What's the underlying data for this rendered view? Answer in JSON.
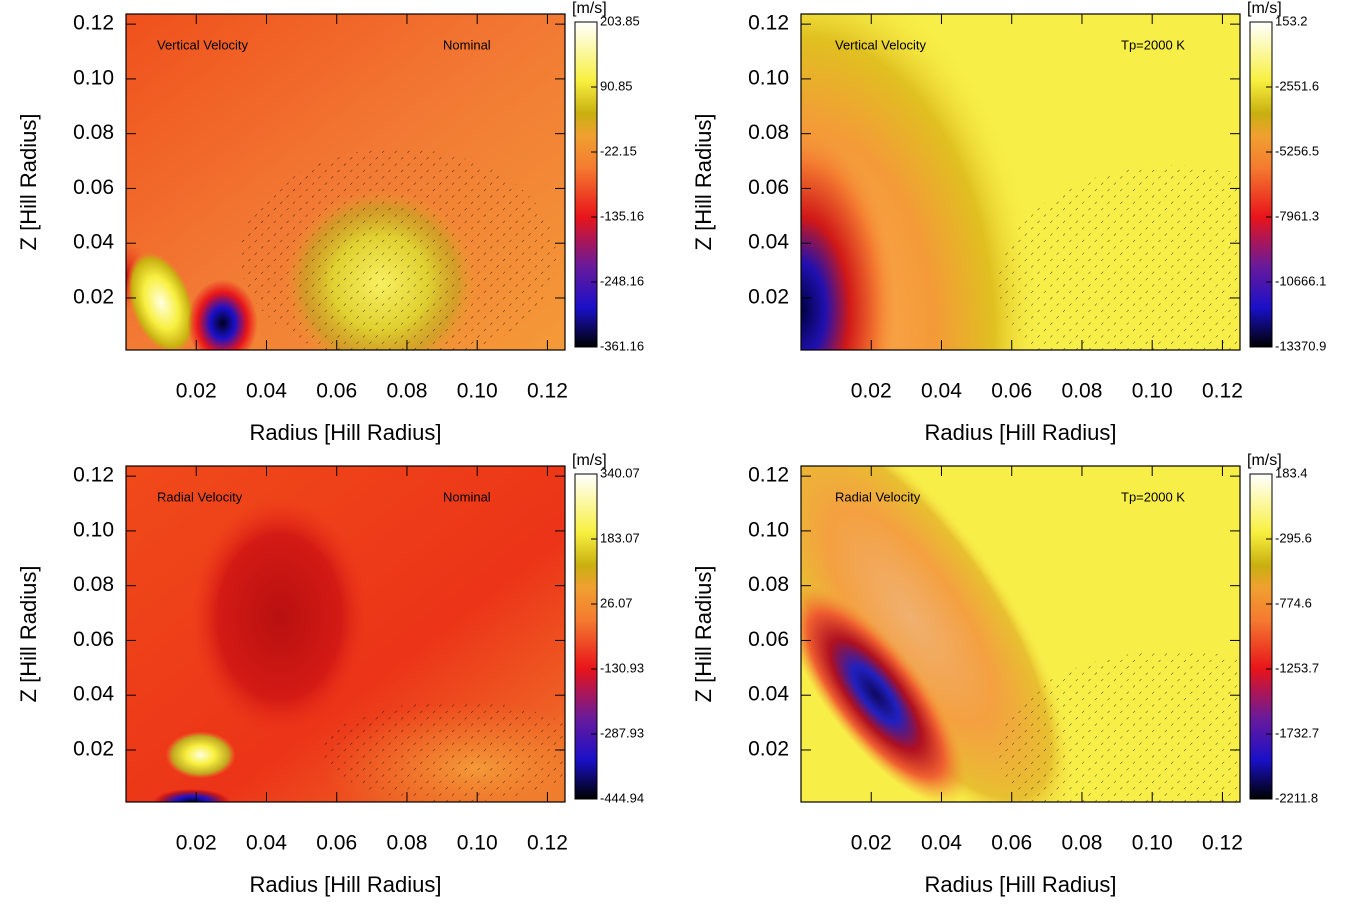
{
  "chart_data": [
    {
      "type": "heatmap",
      "title": "Vertical Velocity",
      "annotation": "Nominal",
      "xlabel": "Radius [Hill Radius]",
      "ylabel": "Z [Hill Radius]",
      "xlim": [
        0,
        0.125
      ],
      "ylim": [
        0.001,
        0.1237
      ],
      "xticks": [
        0.02,
        0.04,
        0.06,
        0.08,
        {
          "value": 0.1,
          "label": "0.10"
        },
        0.12
      ],
      "yticks": [
        0.02,
        0.04,
        0.06,
        0.08,
        {
          "value": 0.1,
          "label": "0.10"
        },
        0.12
      ],
      "colorbar_label": "[m/s]",
      "zlim": [
        -361.16,
        203.85
      ],
      "zticks": [
        203.85,
        90.85,
        -22.15,
        -135.16,
        -248.16,
        -361.16
      ]
    },
    {
      "type": "heatmap",
      "title": "Vertical Velocity",
      "annotation": "Tp=2000 K",
      "xlabel": "Radius [Hill Radius]",
      "ylabel": "Z [Hill Radius]",
      "xlim": [
        0,
        0.125
      ],
      "ylim": [
        0.001,
        0.1237
      ],
      "xticks": [
        0.02,
        0.04,
        0.06,
        0.08,
        {
          "value": 0.1,
          "label": "0.10"
        },
        0.12
      ],
      "yticks": [
        0.02,
        0.04,
        0.06,
        0.08,
        {
          "value": 0.1,
          "label": "0.10"
        },
        0.12
      ],
      "colorbar_label": "[m/s]",
      "zlim": [
        -13370.9,
        153.2
      ],
      "zticks": [
        153.2,
        -2551.6,
        -5256.5,
        -7961.3,
        -10666.1,
        -13370.9
      ]
    },
    {
      "type": "heatmap",
      "title": "Radial Velocity",
      "annotation": "Nominal",
      "xlabel": "Radius [Hill Radius]",
      "ylabel": "Z [Hill Radius]",
      "xlim": [
        0,
        0.125
      ],
      "ylim": [
        0.001,
        0.1237
      ],
      "xticks": [
        0.02,
        0.04,
        0.06,
        0.08,
        {
          "value": 0.1,
          "label": "0.10"
        },
        0.12
      ],
      "yticks": [
        0.02,
        0.04,
        0.06,
        0.08,
        {
          "value": 0.1,
          "label": "0.10"
        },
        0.12
      ],
      "colorbar_label": "[m/s]",
      "zlim": [
        -444.94,
        340.07
      ],
      "zticks": [
        340.07,
        183.07,
        26.07,
        -130.93,
        -287.93,
        -444.94
      ]
    },
    {
      "type": "heatmap",
      "title": "Radial Velocity",
      "annotation": "Tp=2000 K",
      "xlabel": "Radius [Hill Radius]",
      "ylabel": "Z [Hill Radius]",
      "xlim": [
        0,
        0.125
      ],
      "ylim": [
        0.001,
        0.1237
      ],
      "xticks": [
        0.02,
        0.04,
        0.06,
        0.08,
        {
          "value": 0.1,
          "label": "0.10"
        },
        0.12
      ],
      "yticks": [
        0.02,
        0.04,
        0.06,
        0.08,
        {
          "value": 0.1,
          "label": "0.10"
        },
        0.12
      ],
      "colorbar_label": "[m/s]",
      "zlim": [
        -2211.8,
        183.4
      ],
      "zticks": [
        183.4,
        -295.6,
        -774.6,
        -1253.7,
        -1732.7,
        -2211.8
      ]
    }
  ]
}
